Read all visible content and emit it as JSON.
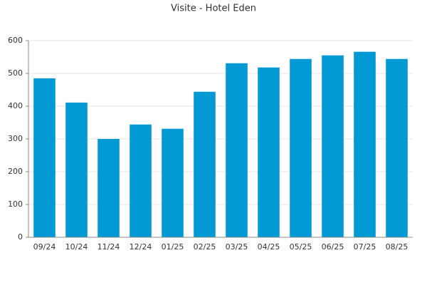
{
  "chart_data": {
    "type": "bar",
    "title": "Visite - Hotel Eden",
    "categories": [
      "09/24",
      "10/24",
      "11/24",
      "12/24",
      "01/25",
      "02/25",
      "03/25",
      "04/25",
      "05/25",
      "06/25",
      "07/25",
      "08/25"
    ],
    "values": [
      485,
      411,
      300,
      344,
      331,
      444,
      531,
      518,
      544,
      555,
      566,
      544
    ],
    "color": "#0399d5",
    "ylim": [
      0,
      600
    ],
    "yticks": [
      0,
      100,
      200,
      300,
      400,
      500,
      600
    ],
    "grid": true
  }
}
